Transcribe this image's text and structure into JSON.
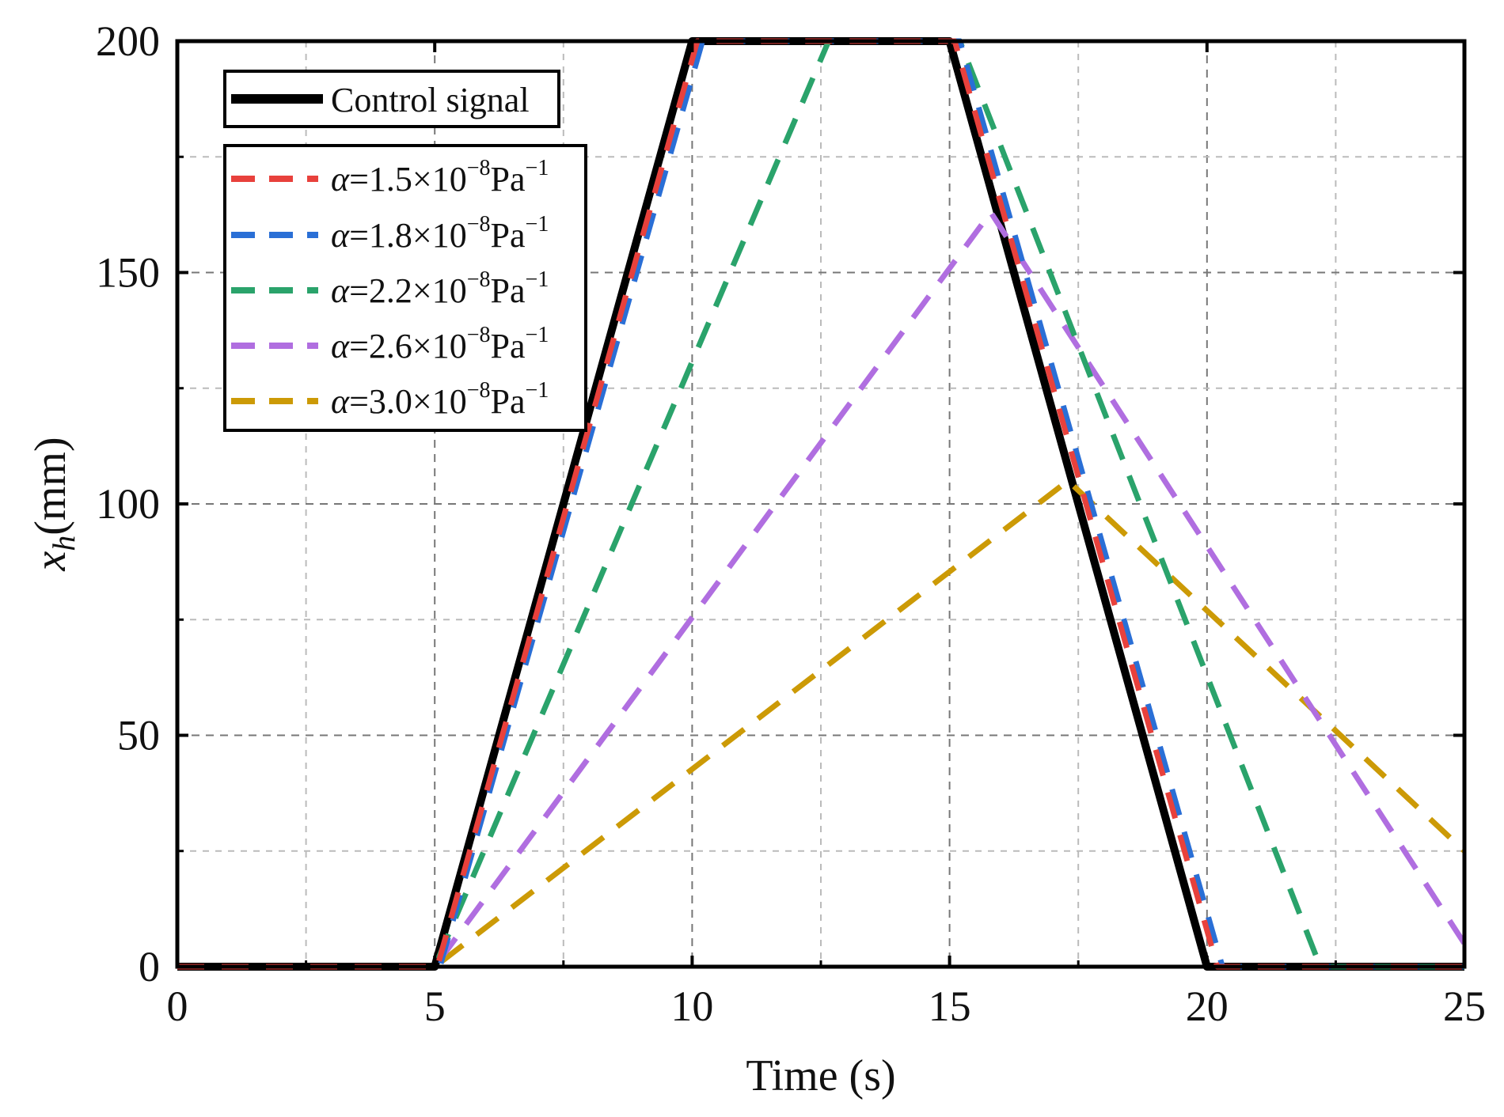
{
  "chart_data": {
    "type": "line",
    "title": "",
    "xlabel": "Time (s)",
    "ylabel": {
      "symbol": "x",
      "subscript": "h",
      "unit": "(mm)"
    },
    "xlim": [
      0,
      25
    ],
    "ylim": [
      0,
      200
    ],
    "xticks": [
      0,
      5,
      10,
      15,
      20,
      25
    ],
    "xtick_labels": [
      "0",
      "5",
      "10",
      "15",
      "20",
      "25"
    ],
    "yticks": [
      0,
      50,
      100,
      150,
      200
    ],
    "ytick_labels": [
      "0",
      "50",
      "100",
      "150",
      "200"
    ],
    "x_minor_grid": [
      2.5,
      7.5,
      12.5,
      17.5,
      22.5
    ],
    "y_minor_grid": [
      25,
      75,
      125,
      175
    ],
    "grid": true,
    "legend_position": "top-left",
    "legend_groups": [
      {
        "series": [
          0
        ]
      },
      {
        "series": [
          1,
          2,
          3,
          4,
          5
        ]
      }
    ],
    "series": [
      {
        "name": "Control signal",
        "label_text": "Control signal",
        "color": "#000000",
        "style": "solid",
        "x": [
          0,
          5,
          10,
          15,
          20,
          25
        ],
        "y": [
          0,
          0,
          200,
          200,
          0,
          0
        ]
      },
      {
        "name": "α=1.5×10^-8 Pa^-1",
        "label_symbol": "α",
        "label_text": "=1.5×10",
        "label_exp": "−8",
        "label_unit": "Pa",
        "label_unit_exp": "−1",
        "color": "#e8413c",
        "style": "dashed",
        "x": [
          0,
          5.05,
          10.1,
          15.1,
          20.2,
          25
        ],
        "y": [
          0,
          0,
          200,
          200,
          0,
          0
        ]
      },
      {
        "name": "α=1.8×10^-8 Pa^-1",
        "label_symbol": "α",
        "label_text": "=1.8×10",
        "label_exp": "−8",
        "label_unit": "Pa",
        "label_unit_exp": "−1",
        "color": "#2a6fd6",
        "style": "dashed",
        "x": [
          0,
          5.1,
          10.2,
          15.2,
          20.3,
          25
        ],
        "y": [
          0,
          0,
          200,
          200,
          0,
          0
        ]
      },
      {
        "name": "α=2.2×10^-8 Pa^-1",
        "label_symbol": "α",
        "label_text": "=2.2×10",
        "label_exp": "−8",
        "label_unit": "Pa",
        "label_unit_exp": "−1",
        "color": "#2aa36b",
        "style": "dashed",
        "x": [
          0,
          5.0,
          12.65,
          15.2,
          22.2,
          25
        ],
        "y": [
          0,
          0,
          200,
          200,
          0,
          0
        ]
      },
      {
        "name": "α=2.6×10^-8 Pa^-1",
        "label_symbol": "α",
        "label_text": "=2.6×10",
        "label_exp": "−8",
        "label_unit": "Pa",
        "label_unit_exp": "−1",
        "color": "#b06ee0",
        "style": "dashed",
        "x": [
          0,
          5.0,
          15.8,
          25
        ],
        "y": [
          0,
          0,
          163,
          5
        ]
      },
      {
        "name": "α=3.0×10^-8 Pa^-1",
        "label_symbol": "α",
        "label_text": "=3.0×10",
        "label_exp": "−8",
        "label_unit": "Pa",
        "label_unit_exp": "−1",
        "color": "#cc9a06",
        "style": "dashed",
        "x": [
          0,
          5.0,
          17.3,
          25
        ],
        "y": [
          0,
          0,
          105,
          25
        ]
      }
    ]
  }
}
